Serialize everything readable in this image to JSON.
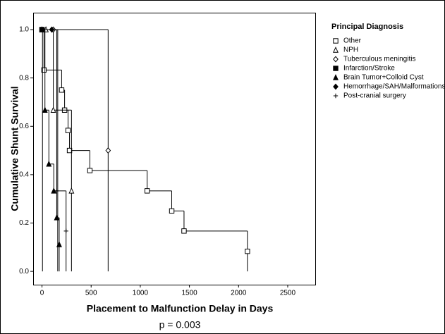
{
  "chart_data": {
    "type": "step",
    "x_label": "Placement to Malfunction Delay in Days",
    "y_label": "Cumulative Shunt Survival",
    "footnote": "p = 0.003",
    "legend_title": "Principal Diagnosis",
    "xlim": [
      -90,
      2780
    ],
    "xticks": [
      0,
      500,
      1000,
      1500,
      2000,
      2500
    ],
    "ylim": [
      -0.055,
      1.07
    ],
    "yticks": [
      {
        "value": 0,
        "label": "0.0"
      },
      {
        "value": 0.2,
        "label": "0.2"
      },
      {
        "value": 0.4,
        "label": "0.4"
      },
      {
        "value": 0.6,
        "label": "0.6"
      },
      {
        "value": 0.8,
        "label": "0.8"
      },
      {
        "value": 1,
        "label": "1.0"
      }
    ],
    "series": [
      {
        "name": "Other",
        "marker": "square-open",
        "color": "#000000",
        "x": [
          0,
          20,
          200,
          230,
          265,
          280,
          487,
          1070,
          1320,
          1445,
          2090,
          2090
        ],
        "values": [
          1,
          0.833,
          0.75,
          0.667,
          0.583,
          0.5,
          0.417,
          0.333,
          0.25,
          0.167,
          0.083,
          0
        ]
      },
      {
        "name": "NPH",
        "marker": "triangle-open",
        "color": "#000000",
        "x": [
          40,
          115,
          300,
          300
        ],
        "values": [
          1,
          0.667,
          0.333,
          0
        ]
      },
      {
        "name": "Tuberculous meningitis",
        "marker": "diamond-open",
        "color": "#000000",
        "x": [
          115,
          673,
          673
        ],
        "values": [
          1,
          0.5,
          0
        ]
      },
      {
        "name": "Infarction/Stroke",
        "marker": "square-filled",
        "color": "#000000",
        "x": [
          0,
          5
        ],
        "values": [
          1,
          0
        ]
      },
      {
        "name": "Brain Tumor+Colloid Cyst",
        "marker": "triangle-filled",
        "color": "#000000",
        "x": [
          0,
          30,
          70,
          120,
          150,
          175,
          175
        ],
        "values": [
          1,
          0.667,
          0.444,
          0.333,
          0.222,
          0.111,
          0
        ]
      },
      {
        "name": "Hemorrhage/SAH/Malformations",
        "marker": "diamond-filled",
        "color": "#000000",
        "x": [
          100,
          160
        ],
        "values": [
          1,
          0
        ]
      },
      {
        "name": "Post-cranial surgery",
        "marker": "plus",
        "color": "#000000",
        "x": [
          0,
          150,
          245,
          245
        ],
        "values": [
          1,
          0.333,
          0.167,
          0
        ]
      }
    ]
  }
}
